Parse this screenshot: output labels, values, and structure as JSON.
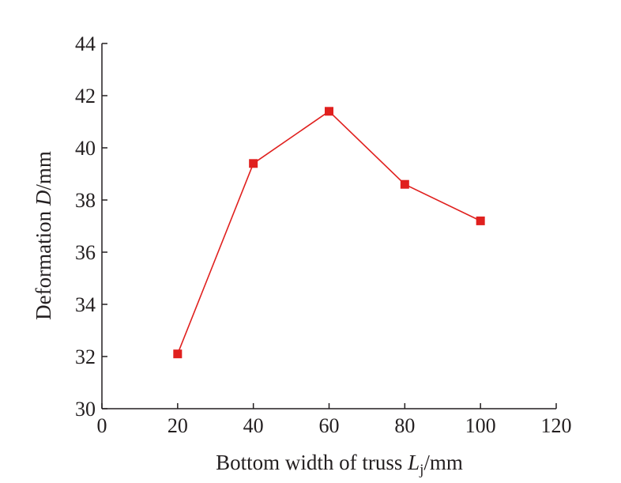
{
  "chart_data": {
    "type": "line",
    "title": "",
    "xlabel": {
      "prefix": "Bottom width of truss ",
      "symbol": "L",
      "subscript": "j",
      "suffix": "/mm"
    },
    "ylabel": {
      "prefix": "Deformation ",
      "symbol": "D",
      "suffix": "/mm"
    },
    "xlim": [
      0,
      120
    ],
    "ylim": [
      30,
      44
    ],
    "xticks": [
      0,
      20,
      40,
      60,
      80,
      100,
      120
    ],
    "yticks": [
      30,
      32,
      34,
      36,
      38,
      40,
      42,
      44
    ],
    "grid": false,
    "series": [
      {
        "color": "#e0201e",
        "marker": "square",
        "x": [
          20,
          40,
          60,
          80,
          100
        ],
        "y": [
          32.1,
          39.4,
          41.4,
          38.6,
          37.2
        ]
      }
    ]
  }
}
